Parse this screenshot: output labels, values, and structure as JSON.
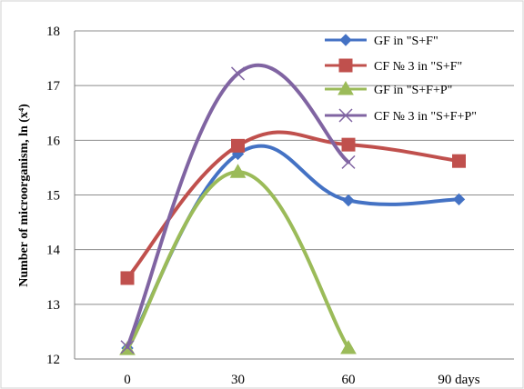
{
  "chart_data": {
    "type": "line",
    "ylabel": "Number of microorganism, ln (x⁴)",
    "x_tick_labels": [
      "0",
      "30",
      "60",
      "90 days"
    ],
    "x": [
      0,
      30,
      60,
      90
    ],
    "ylim": [
      12,
      18
    ],
    "y_ticks": [
      12,
      13,
      14,
      15,
      16,
      17,
      18
    ],
    "grid": true,
    "legend_position": "top-right",
    "series": [
      {
        "name": "GF in \"S+F\"",
        "color": "#4472C4",
        "marker": "diamond",
        "x": [
          0,
          30,
          60,
          90
        ],
        "values": [
          12.2,
          15.75,
          14.9,
          14.92
        ]
      },
      {
        "name": "CF № 3 in \"S+F\"",
        "color": "#C0504D",
        "marker": "square",
        "x": [
          0,
          30,
          60,
          90
        ],
        "values": [
          13.48,
          15.9,
          15.92,
          15.62
        ]
      },
      {
        "name": "GF in \"S+F+P\"",
        "color": "#9BBB59",
        "marker": "triangle",
        "x": [
          0,
          30,
          60
        ],
        "values": [
          12.18,
          15.42,
          12.2
        ]
      },
      {
        "name": "CF № 3 in \"S+F+P\"",
        "color": "#8064A2",
        "marker": "x",
        "x": [
          0,
          30,
          60
        ],
        "values": [
          12.22,
          17.22,
          15.6
        ]
      }
    ]
  }
}
